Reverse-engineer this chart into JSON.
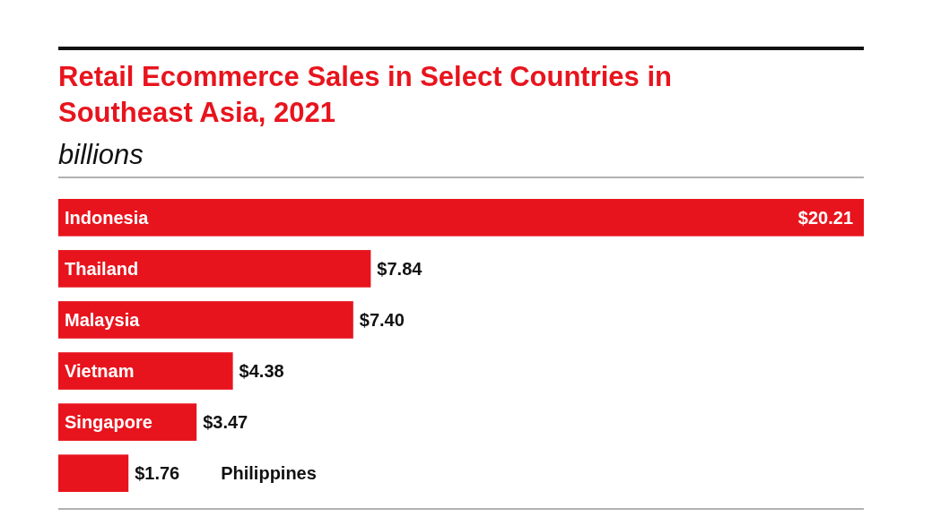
{
  "chart_data": {
    "type": "bar",
    "orientation": "horizontal",
    "title": "Retail Ecommerce Sales in Select Countries in Southeast Asia, 2021",
    "subtitle": "billions",
    "categories": [
      "Indonesia",
      "Thailand",
      "Malaysia",
      "Vietnam",
      "Singapore",
      "Philippines"
    ],
    "values": [
      20.21,
      7.84,
      7.4,
      4.38,
      3.47,
      1.76
    ],
    "value_labels": [
      "$20.21",
      "$7.84",
      "$7.40",
      "$4.38",
      "$3.47",
      "$1.76"
    ],
    "color": "#e8141d"
  }
}
